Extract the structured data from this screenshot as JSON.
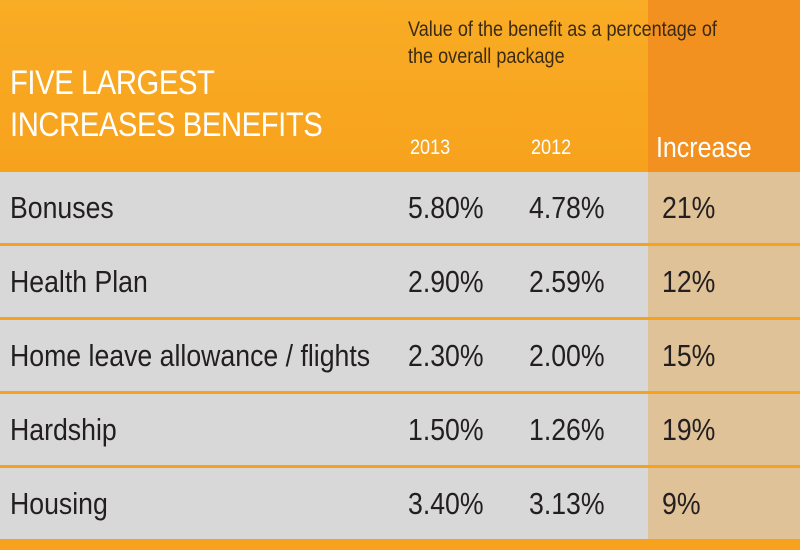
{
  "chart_data": {
    "type": "table",
    "title": [
      "FIVE LARGEST",
      "INCREASES BENEFITS"
    ],
    "subtitle": [
      "Value of the benefit as a percentage of",
      "the overall package"
    ],
    "columns": [
      "2013",
      "2012",
      "Increase"
    ],
    "rows": [
      {
        "label": "Bonuses",
        "v2013": "5.80%",
        "v2012": "4.78%",
        "increase": "21%"
      },
      {
        "label": "Health Plan",
        "v2013": "2.90%",
        "v2012": "2.59%",
        "increase": "12%"
      },
      {
        "label": "Home leave allowance / flights",
        "v2013": "2.30%",
        "v2012": "2.00%",
        "increase": "15%"
      },
      {
        "label": "Hardship",
        "v2013": "1.50%",
        "v2012": "1.26%",
        "increase": "19%"
      },
      {
        "label": "Housing",
        "v2013": "3.40%",
        "v2012": "3.13%",
        "increase": "9%"
      }
    ]
  },
  "colors": {
    "header_orange": "#f7a21d",
    "increase_header": "#f39120",
    "row_gray": "#d8d8d8",
    "increase_cell": "#dfc298",
    "separator": "#f6a21f"
  }
}
